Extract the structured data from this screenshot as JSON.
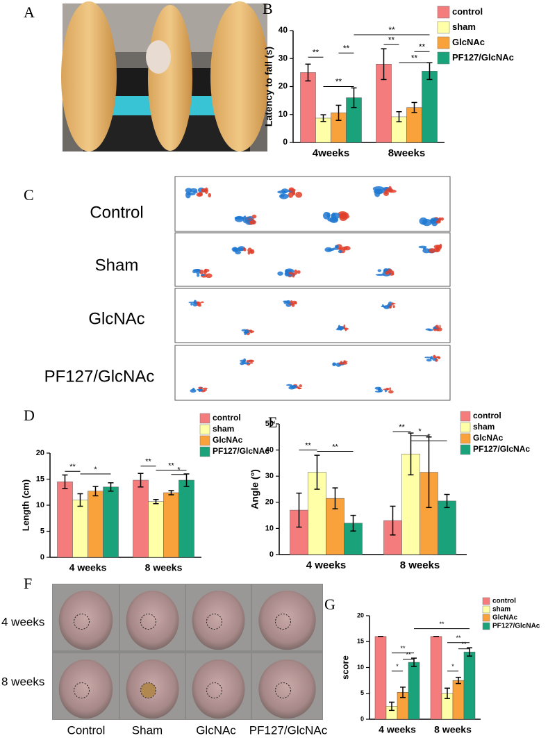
{
  "panel_labels": [
    "A",
    "B",
    "C",
    "D",
    "E",
    "F",
    "G"
  ],
  "footprint_rows": [
    "Control",
    "Sham",
    "GlcNAc",
    "PF127/GlcNAc"
  ],
  "photo_rows": [
    "4 weeks",
    "8 weeks"
  ],
  "photo_columns": [
    "Control",
    "Sham",
    "GlcNAc",
    "PF127/GlcNAc"
  ],
  "chart_data": [
    {
      "type": "bar",
      "ylabel": "Latency to fall (s)",
      "categories": [
        "4weeks",
        "8weeks"
      ],
      "ylim": [
        0,
        40
      ],
      "yticks": [
        0,
        10,
        20,
        30,
        40
      ],
      "series": [
        {
          "name": "control",
          "color": "#f47c7c",
          "values": [
            25,
            28
          ],
          "errors": [
            3,
            5.5
          ]
        },
        {
          "name": "sham",
          "color": "#ffffa8",
          "values": [
            8.7,
            9.2
          ],
          "errors": [
            1.2,
            1.8
          ]
        },
        {
          "name": "GlcNAc",
          "color": "#f9a13a",
          "values": [
            10.6,
            12.5
          ],
          "errors": [
            2.7,
            1.8
          ]
        },
        {
          "name": "PF127/GlcNAc",
          "color": "#1aa37a",
          "values": [
            16,
            25.5
          ],
          "errors": [
            3.5,
            3
          ]
        }
      ],
      "annotations": [
        {
          "text": "**",
          "y": 30.5,
          "bars": [
            [
              0,
              0
            ],
            [
              0,
              1
            ]
          ]
        },
        {
          "text": "**",
          "y": 32,
          "bars": [
            [
              0,
              2
            ],
            [
              0,
              3
            ]
          ]
        },
        {
          "text": "**",
          "y": 20,
          "bars": [
            [
              0,
              1
            ],
            [
              0,
              3
            ]
          ]
        },
        {
          "text": "**",
          "y": 38.5,
          "bars": [
            [
              0,
              3
            ],
            [
              1,
              3
            ]
          ]
        },
        {
          "text": "**",
          "y": 35,
          "bars": [
            [
              1,
              0
            ],
            [
              1,
              1
            ]
          ]
        },
        {
          "text": "**",
          "y": 32.5,
          "bars": [
            [
              1,
              2
            ],
            [
              1,
              3
            ]
          ]
        },
        {
          "text": "**",
          "y": 28.5,
          "bars": [
            [
              1,
              1
            ],
            [
              1,
              3
            ]
          ]
        }
      ]
    },
    {
      "type": "bar",
      "ylabel": "Length (cm)",
      "categories": [
        "4 weeks",
        "8 weeks"
      ],
      "ylim": [
        0,
        20
      ],
      "yticks": [
        0,
        5,
        10,
        15,
        20
      ],
      "series": [
        {
          "name": "control",
          "color": "#f47c7c",
          "values": [
            14.5,
            14.8
          ],
          "errors": [
            1.3,
            1.3
          ]
        },
        {
          "name": "sham",
          "color": "#ffffa8",
          "values": [
            11,
            10.7
          ],
          "errors": [
            1.2,
            0.4
          ]
        },
        {
          "name": "GlcNAc",
          "color": "#f9a13a",
          "values": [
            12.7,
            12.4
          ],
          "errors": [
            0.9,
            0.4
          ]
        },
        {
          "name": "PF127/GlcNAc",
          "color": "#1aa37a",
          "values": [
            13.5,
            14.8
          ],
          "errors": [
            0.8,
            1.2
          ]
        }
      ],
      "annotations": [
        {
          "text": "**",
          "y": 16.5,
          "bars": [
            [
              0,
              0
            ],
            [
              0,
              1
            ]
          ]
        },
        {
          "text": "*",
          "y": 16,
          "bars": [
            [
              0,
              1
            ],
            [
              0,
              3
            ]
          ]
        },
        {
          "text": "**",
          "y": 17.5,
          "bars": [
            [
              1,
              0
            ],
            [
              1,
              1
            ]
          ]
        },
        {
          "text": "**",
          "y": 16.7,
          "bars": [
            [
              1,
              1
            ],
            [
              1,
              3
            ]
          ]
        },
        {
          "text": "*",
          "y": 15.9,
          "bars": [
            [
              1,
              2
            ],
            [
              1,
              3
            ]
          ]
        }
      ]
    },
    {
      "type": "bar",
      "ylabel": "Angle (°)",
      "categories": [
        "4 weeks",
        "8 weeks"
      ],
      "ylim": [
        0,
        50
      ],
      "yticks": [
        0,
        10,
        20,
        30,
        40,
        50
      ],
      "series": [
        {
          "name": "control",
          "color": "#f47c7c",
          "values": [
            17,
            13
          ],
          "errors": [
            6.5,
            5.5
          ]
        },
        {
          "name": "sham",
          "color": "#ffffa8",
          "values": [
            31.5,
            38.5
          ],
          "errors": [
            6.5,
            8
          ]
        },
        {
          "name": "GlcNAc",
          "color": "#f9a13a",
          "values": [
            21.5,
            31.5
          ],
          "errors": [
            4,
            13.5
          ]
        },
        {
          "name": "PF127/GlcNAc",
          "color": "#1aa37a",
          "values": [
            12,
            20.5
          ],
          "errors": [
            3,
            2.5
          ]
        }
      ],
      "annotations": [
        {
          "text": "**",
          "y": 40,
          "bars": [
            [
              0,
              0
            ],
            [
              0,
              1
            ]
          ]
        },
        {
          "text": "**",
          "y": 39.5,
          "bars": [
            [
              0,
              1
            ],
            [
              0,
              3
            ]
          ]
        },
        {
          "text": "**",
          "y": 47,
          "bars": [
            [
              1,
              0
            ],
            [
              1,
              1
            ]
          ]
        },
        {
          "text": "*",
          "y": 45.5,
          "bars": [
            [
              1,
              1
            ],
            [
              1,
              2
            ]
          ]
        },
        {
          "text": "*",
          "y": 43.5,
          "bars": [
            [
              1,
              1
            ],
            [
              1,
              3
            ]
          ]
        }
      ]
    },
    {
      "type": "bar",
      "ylabel": "score",
      "categories": [
        "4 weeks",
        "8 weeks"
      ],
      "ylim": [
        0,
        20
      ],
      "yticks": [
        0,
        5,
        10,
        15,
        20
      ],
      "series": [
        {
          "name": "control",
          "color": "#f47c7c",
          "values": [
            16,
            16
          ],
          "errors": [
            0,
            0
          ]
        },
        {
          "name": "sham",
          "color": "#ffffa8",
          "values": [
            2.5,
            5
          ],
          "errors": [
            0.8,
            1
          ]
        },
        {
          "name": "GlcNAc",
          "color": "#f9a13a",
          "values": [
            5.2,
            7.5
          ],
          "errors": [
            1,
            0.6
          ]
        },
        {
          "name": "PF127/GlcNAc",
          "color": "#1aa37a",
          "values": [
            11,
            13
          ],
          "errors": [
            0.8,
            0.8
          ]
        }
      ],
      "annotations": [
        {
          "text": "*",
          "y": 9.3,
          "bars": [
            [
              0,
              1
            ],
            [
              0,
              2
            ]
          ]
        },
        {
          "text": "**",
          "y": 12.8,
          "bars": [
            [
              0,
              1
            ],
            [
              0,
              3
            ]
          ]
        },
        {
          "text": "**",
          "y": 11.6,
          "bars": [
            [
              0,
              2
            ],
            [
              0,
              3
            ]
          ]
        },
        {
          "text": "**",
          "y": 17.5,
          "bars": [
            [
              0,
              3
            ],
            [
              1,
              3
            ]
          ]
        },
        {
          "text": "*",
          "y": 9.3,
          "bars": [
            [
              1,
              1
            ],
            [
              1,
              2
            ]
          ]
        },
        {
          "text": "**",
          "y": 14.8,
          "bars": [
            [
              1,
              1
            ],
            [
              1,
              3
            ]
          ]
        },
        {
          "text": "**",
          "y": 13.6,
          "bars": [
            [
              1,
              2
            ],
            [
              1,
              3
            ]
          ]
        }
      ]
    }
  ]
}
